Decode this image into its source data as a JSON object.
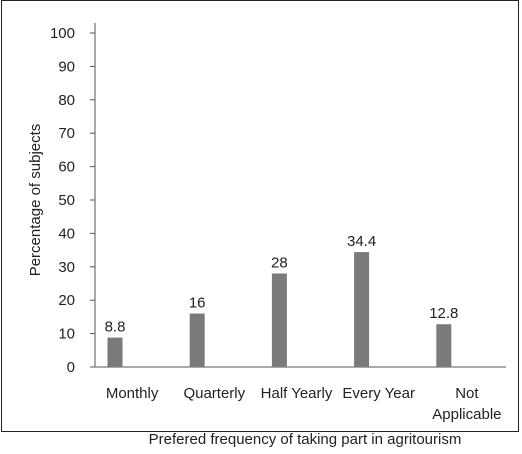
{
  "chart_data": {
    "type": "bar",
    "title": "",
    "xlabel": "Prefered frequency of taking part in agritourism",
    "ylabel": "Percentage of subjects",
    "ylim": [
      0,
      100
    ],
    "yticks": [
      "0",
      "10",
      "20",
      "30",
      "40",
      "50",
      "60",
      "70",
      "80",
      "90",
      "100"
    ],
    "categories": [
      [
        "Monthly"
      ],
      [
        "Quarterly"
      ],
      [
        "Half Yearly"
      ],
      [
        "Every Year"
      ],
      [
        "Not",
        "Applicable"
      ]
    ],
    "values": [
      8.8,
      16,
      28,
      34.4,
      12.8
    ],
    "data_labels": [
      "8.8",
      "16",
      "28",
      "34.4",
      "12.8"
    ],
    "bar_color": "#7a7a7a",
    "grid": false,
    "legend": "none"
  }
}
